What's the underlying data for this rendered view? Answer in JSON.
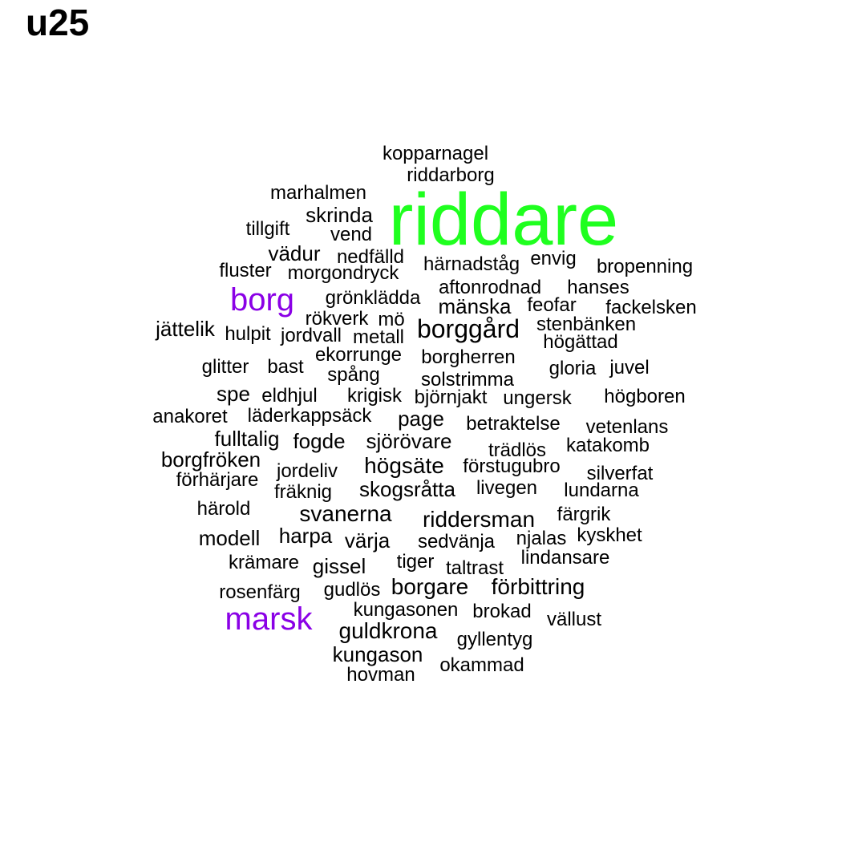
{
  "title": "u25",
  "colors": {
    "default": "#000000",
    "top": "#1fff1f",
    "second": "#8a00e6"
  },
  "words": [
    {
      "text": "kopparnagel",
      "level": "default"
    },
    {
      "text": "riddarborg",
      "level": "default"
    },
    {
      "text": "marhalmen",
      "level": "default"
    },
    {
      "text": "riddare",
      "level": "top"
    },
    {
      "text": "skrinda",
      "level": "default"
    },
    {
      "text": "tillgift",
      "level": "default"
    },
    {
      "text": "vend",
      "level": "default"
    },
    {
      "text": "vädur",
      "level": "default"
    },
    {
      "text": "nedfälld",
      "level": "default"
    },
    {
      "text": "envig",
      "level": "default"
    },
    {
      "text": "härnadståg",
      "level": "default"
    },
    {
      "text": "bropenning",
      "level": "default"
    },
    {
      "text": "fluster",
      "level": "default"
    },
    {
      "text": "morgondryck",
      "level": "default"
    },
    {
      "text": "borg",
      "level": "second"
    },
    {
      "text": "aftonrodnad",
      "level": "default"
    },
    {
      "text": "hanses",
      "level": "default"
    },
    {
      "text": "grönklädda",
      "level": "default"
    },
    {
      "text": "mänska",
      "level": "default"
    },
    {
      "text": "feofar",
      "level": "default"
    },
    {
      "text": "fackelsken",
      "level": "default"
    },
    {
      "text": "rökverk",
      "level": "default"
    },
    {
      "text": "mö",
      "level": "default"
    },
    {
      "text": "stenbänken",
      "level": "default"
    },
    {
      "text": "jättelik",
      "level": "default"
    },
    {
      "text": "hulpit",
      "level": "default"
    },
    {
      "text": "jordvall",
      "level": "default"
    },
    {
      "text": "metall",
      "level": "default"
    },
    {
      "text": "borggård",
      "level": "default"
    },
    {
      "text": "högättad",
      "level": "default"
    },
    {
      "text": "ekorrunge",
      "level": "default"
    },
    {
      "text": "borgherren",
      "level": "default"
    },
    {
      "text": "glitter",
      "level": "default"
    },
    {
      "text": "bast",
      "level": "default"
    },
    {
      "text": "gloria",
      "level": "default"
    },
    {
      "text": "juvel",
      "level": "default"
    },
    {
      "text": "spång",
      "level": "default"
    },
    {
      "text": "solstrimma",
      "level": "default"
    },
    {
      "text": "spe",
      "level": "default"
    },
    {
      "text": "eldhjul",
      "level": "default"
    },
    {
      "text": "krigisk",
      "level": "default"
    },
    {
      "text": "björnjakt",
      "level": "default"
    },
    {
      "text": "ungersk",
      "level": "default"
    },
    {
      "text": "högboren",
      "level": "default"
    },
    {
      "text": "anakoret",
      "level": "default"
    },
    {
      "text": "läderkappsäck",
      "level": "default"
    },
    {
      "text": "page",
      "level": "default"
    },
    {
      "text": "betraktelse",
      "level": "default"
    },
    {
      "text": "vetenlans",
      "level": "default"
    },
    {
      "text": "fulltalig",
      "level": "default"
    },
    {
      "text": "fogde",
      "level": "default"
    },
    {
      "text": "sjörövare",
      "level": "default"
    },
    {
      "text": "trädlös",
      "level": "default"
    },
    {
      "text": "katakomb",
      "level": "default"
    },
    {
      "text": "borgfröken",
      "level": "default"
    },
    {
      "text": "jordeliv",
      "level": "default"
    },
    {
      "text": "högsäte",
      "level": "default"
    },
    {
      "text": "förstugubro",
      "level": "default"
    },
    {
      "text": "silverfat",
      "level": "default"
    },
    {
      "text": "förhärjare",
      "level": "default"
    },
    {
      "text": "fräknig",
      "level": "default"
    },
    {
      "text": "skogsråtta",
      "level": "default"
    },
    {
      "text": "livegen",
      "level": "default"
    },
    {
      "text": "lundarna",
      "level": "default"
    },
    {
      "text": "härold",
      "level": "default"
    },
    {
      "text": "svanerna",
      "level": "default"
    },
    {
      "text": "riddersman",
      "level": "default"
    },
    {
      "text": "färgrik",
      "level": "default"
    },
    {
      "text": "modell",
      "level": "default"
    },
    {
      "text": "harpa",
      "level": "default"
    },
    {
      "text": "värja",
      "level": "default"
    },
    {
      "text": "sedvänja",
      "level": "default"
    },
    {
      "text": "njalas",
      "level": "default"
    },
    {
      "text": "kyskhet",
      "level": "default"
    },
    {
      "text": "krämare",
      "level": "default"
    },
    {
      "text": "gissel",
      "level": "default"
    },
    {
      "text": "tiger",
      "level": "default"
    },
    {
      "text": "taltrast",
      "level": "default"
    },
    {
      "text": "lindansare",
      "level": "default"
    },
    {
      "text": "rosenfärg",
      "level": "default"
    },
    {
      "text": "gudlös",
      "level": "default"
    },
    {
      "text": "borgare",
      "level": "default"
    },
    {
      "text": "förbittring",
      "level": "default"
    },
    {
      "text": "marsk",
      "level": "second"
    },
    {
      "text": "kungasonen",
      "level": "default"
    },
    {
      "text": "brokad",
      "level": "default"
    },
    {
      "text": "vällust",
      "level": "default"
    },
    {
      "text": "guldkrona",
      "level": "default"
    },
    {
      "text": "gyllentyg",
      "level": "default"
    },
    {
      "text": "kungason",
      "level": "default"
    },
    {
      "text": "okammad",
      "level": "default"
    },
    {
      "text": "hovman",
      "level": "default"
    }
  ]
}
